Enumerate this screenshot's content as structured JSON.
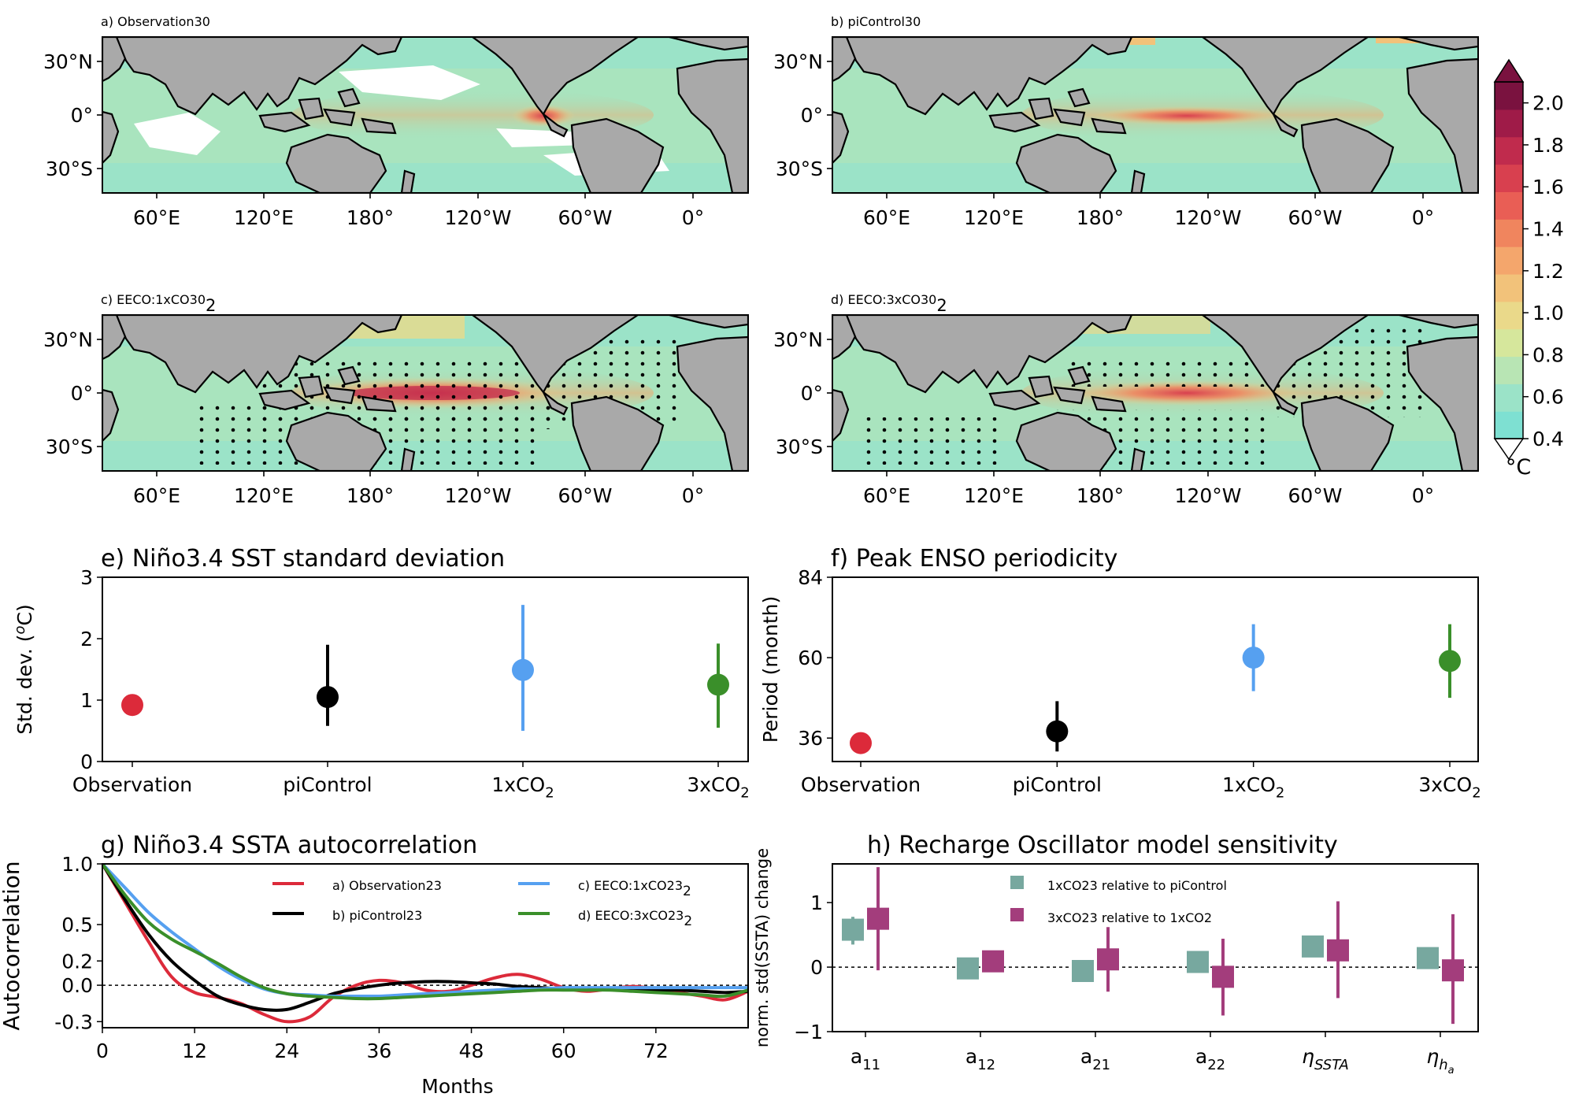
{
  "colorbar": {
    "unit": "°C",
    "ticks": [
      "0.4",
      "0.6",
      "0.8",
      "1.0",
      "1.2",
      "1.4",
      "1.6",
      "1.8",
      "2.0"
    ],
    "min": 0.4,
    "max": 2.1,
    "colors": [
      "#7ee0d2",
      "#9be3c8",
      "#b8e5b4",
      "#d6e79c",
      "#ead98a",
      "#f2c27a",
      "#f4a66c",
      "#f0855e",
      "#e95e55",
      "#d8404f",
      "#c02b4d",
      "#9f1b48",
      "#7a123f"
    ]
  },
  "maps": {
    "lon_ticks": [
      "60°E",
      "120°E",
      "180°",
      "120°W",
      "60°W",
      "0°"
    ],
    "lat_ticks": [
      "30°N",
      "0°",
      "30°S"
    ],
    "panels": [
      {
        "title": "a) Observation"
      },
      {
        "title": "b) piControl"
      },
      {
        "title": "c) EECO:1xCO",
        "sub": "2"
      },
      {
        "title": "d) EECO:3xCO",
        "sub": "2"
      }
    ]
  },
  "chart_data": [
    {
      "type": "scatter",
      "title": "e) Niño3.4 SST standard deviation",
      "ylabel": "Std. dev. (°C)",
      "ylabel_parts": [
        "Std. dev. (",
        "o",
        "C)"
      ],
      "ylim": [
        0,
        3
      ],
      "yticks": [
        "0",
        "1",
        "2",
        "3"
      ],
      "categories": [
        "Observation",
        "piControl",
        "1xCO",
        "3xCO"
      ],
      "category_subs": [
        "",
        "",
        "2",
        "2"
      ],
      "values": [
        0.92,
        1.05,
        1.49,
        1.25
      ],
      "err_low": [
        null,
        0.58,
        0.5,
        0.55
      ],
      "err_high": [
        null,
        1.9,
        2.55,
        1.92
      ],
      "colors": [
        "#dc2a3a",
        "#000000",
        "#56a0f0",
        "#3a8f2a"
      ]
    },
    {
      "type": "scatter",
      "title": "f) Peak ENSO periodicity",
      "ylabel": "Period (month)",
      "ylim": [
        29,
        84
      ],
      "yticks": [
        "36",
        "60",
        "84"
      ],
      "categories": [
        "Observation",
        "piControl",
        "1xCO",
        "3xCO"
      ],
      "category_subs": [
        "",
        "",
        "2",
        "2"
      ],
      "values": [
        34.5,
        38,
        60,
        59
      ],
      "err_low": [
        null,
        32,
        50,
        48
      ],
      "err_high": [
        null,
        47,
        70,
        70
      ],
      "colors": [
        "#dc2a3a",
        "#000000",
        "#56a0f0",
        "#3a8f2a"
      ]
    },
    {
      "type": "line",
      "title": "g) Niño3.4 SSTA autocorrelation",
      "xlabel": "Months",
      "ylabel": "Autocorrelation",
      "xlim": [
        0,
        84
      ],
      "ylim": [
        -0.35,
        1.0
      ],
      "xticks": [
        "0",
        "12",
        "24",
        "36",
        "48",
        "60",
        "72"
      ],
      "yticks": [
        "1.0",
        "0.5",
        "0.2",
        "0.0",
        "-0.3"
      ],
      "series": [
        {
          "name": "a) Observation",
          "color": "#dc2a3a",
          "x": [
            0,
            3,
            6,
            9,
            12,
            15,
            18,
            21,
            24,
            27,
            30,
            33,
            36,
            39,
            42,
            45,
            48,
            51,
            54,
            57,
            60,
            63,
            66,
            69,
            72,
            75,
            78,
            81,
            84
          ],
          "y": [
            1.0,
            0.68,
            0.36,
            0.07,
            -0.06,
            -0.1,
            -0.15,
            -0.24,
            -0.3,
            -0.26,
            -0.1,
            0.0,
            0.04,
            0.02,
            -0.04,
            -0.05,
            0.0,
            0.06,
            0.09,
            0.05,
            -0.02,
            -0.05,
            -0.03,
            -0.01,
            -0.03,
            -0.06,
            -0.09,
            -0.12,
            -0.05
          ]
        },
        {
          "name": "b) piControl",
          "color": "#000000",
          "x": [
            0,
            3,
            6,
            9,
            12,
            15,
            18,
            21,
            24,
            27,
            30,
            33,
            36,
            39,
            42,
            45,
            48,
            51,
            54,
            57,
            60,
            63,
            66,
            69,
            72,
            75,
            78,
            81,
            84
          ],
          "y": [
            1.0,
            0.7,
            0.42,
            0.2,
            0.04,
            -0.09,
            -0.16,
            -0.2,
            -0.2,
            -0.14,
            -0.07,
            -0.03,
            0.0,
            0.02,
            0.03,
            0.03,
            0.02,
            0.01,
            -0.01,
            -0.02,
            -0.03,
            -0.03,
            -0.03,
            -0.03,
            -0.04,
            -0.04,
            -0.05,
            -0.06,
            -0.05
          ]
        },
        {
          "name": "c) EECO:1xCO",
          "sub": "2",
          "color": "#56a0f0",
          "x": [
            0,
            3,
            6,
            9,
            12,
            15,
            18,
            21,
            24,
            27,
            30,
            33,
            36,
            39,
            42,
            45,
            48,
            51,
            54,
            57,
            60,
            63,
            66,
            69,
            72,
            75,
            78,
            81,
            84
          ],
          "y": [
            1.0,
            0.8,
            0.6,
            0.44,
            0.3,
            0.16,
            0.05,
            -0.03,
            -0.07,
            -0.08,
            -0.09,
            -0.09,
            -0.09,
            -0.08,
            -0.07,
            -0.06,
            -0.05,
            -0.04,
            -0.03,
            -0.03,
            -0.02,
            -0.02,
            -0.02,
            -0.02,
            -0.02,
            -0.02,
            -0.02,
            -0.02,
            -0.02
          ]
        },
        {
          "name": "d) EECO:3xCO",
          "sub": "2",
          "color": "#3a8f2a",
          "x": [
            0,
            3,
            6,
            9,
            12,
            15,
            18,
            21,
            24,
            27,
            30,
            33,
            36,
            39,
            42,
            45,
            48,
            51,
            54,
            57,
            60,
            63,
            66,
            69,
            72,
            75,
            78,
            81,
            84
          ],
          "y": [
            1.0,
            0.74,
            0.52,
            0.38,
            0.28,
            0.18,
            0.07,
            -0.02,
            -0.07,
            -0.09,
            -0.1,
            -0.11,
            -0.11,
            -0.1,
            -0.09,
            -0.08,
            -0.07,
            -0.06,
            -0.05,
            -0.04,
            -0.04,
            -0.04,
            -0.04,
            -0.05,
            -0.06,
            -0.07,
            -0.08,
            -0.09,
            -0.04
          ]
        }
      ]
    },
    {
      "type": "scatter",
      "title": "h) Recharge Oscillator model sensitivity",
      "ylabel": "norm. std(SSTA) change",
      "ylim": [
        -1,
        1.6
      ],
      "yticks": [
        "1",
        "0",
        "−1"
      ],
      "ytick_values": [
        1,
        0,
        -1
      ],
      "categories": [
        {
          "base": "a",
          "sub": "11",
          "italic": false
        },
        {
          "base": "a",
          "sub": "12",
          "italic": false
        },
        {
          "base": "a",
          "sub": "21",
          "italic": false
        },
        {
          "base": "a",
          "sub": "22",
          "italic": false
        },
        {
          "base": "η",
          "sub": "SSTA",
          "italic": true
        },
        {
          "base": "η",
          "sub": "h",
          "subsub": "a",
          "italic": true
        }
      ],
      "series": [
        {
          "name": "1xCO",
          "name_sub": "2",
          "name_rest": " relative to piControl",
          "color": "#77a89f",
          "values": [
            0.58,
            -0.02,
            -0.06,
            0.08,
            0.32,
            0.14
          ],
          "err_low": [
            0.35,
            null,
            null,
            null,
            null,
            null
          ],
          "err_high": [
            0.78,
            null,
            null,
            null,
            null,
            null
          ]
        },
        {
          "name": "3xCO",
          "name_sub": "2",
          "name_rest": " relative to 1xCO",
          "name_sub2": "2",
          "color": "#a33d7c",
          "values": [
            0.75,
            0.09,
            0.12,
            -0.15,
            0.26,
            -0.05
          ],
          "err_low": [
            -0.05,
            null,
            -0.38,
            -0.75,
            -0.48,
            -0.88
          ],
          "err_high": [
            1.55,
            null,
            0.62,
            0.44,
            1.02,
            0.82
          ]
        }
      ]
    }
  ]
}
